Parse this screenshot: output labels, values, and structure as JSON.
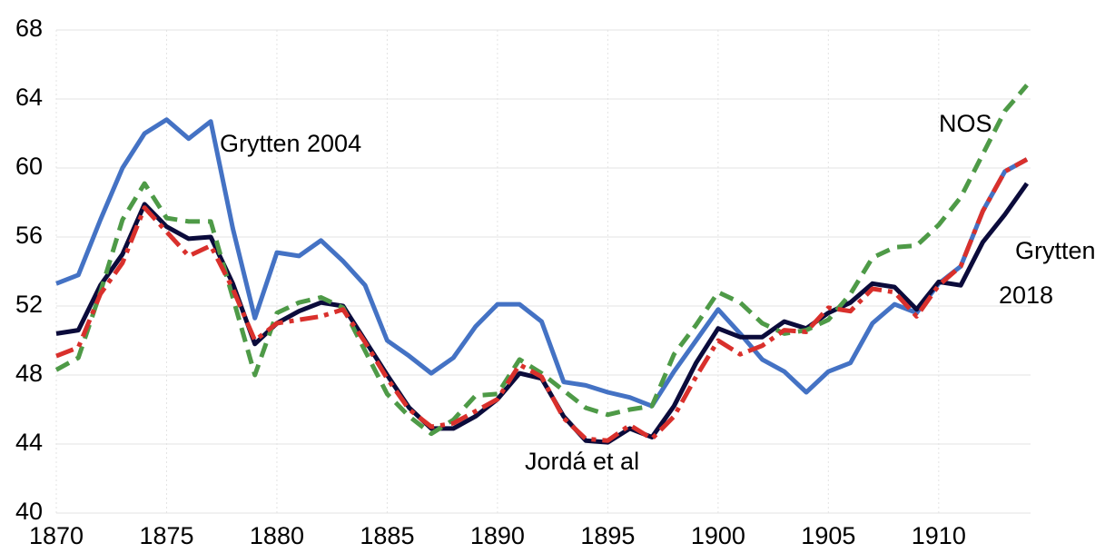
{
  "chart_data": {
    "type": "line",
    "x": [
      1870,
      1871,
      1872,
      1873,
      1874,
      1875,
      1876,
      1877,
      1878,
      1879,
      1880,
      1881,
      1882,
      1883,
      1884,
      1885,
      1886,
      1887,
      1888,
      1889,
      1890,
      1891,
      1892,
      1893,
      1894,
      1895,
      1896,
      1897,
      1898,
      1899,
      1900,
      1901,
      1902,
      1903,
      1904,
      1905,
      1906,
      1907,
      1908,
      1909,
      1910,
      1911,
      1912,
      1913,
      1914
    ],
    "xlim": [
      1870,
      1914
    ],
    "xticks": [
      1870,
      1875,
      1880,
      1885,
      1890,
      1895,
      1900,
      1905,
      1910
    ],
    "ylim": [
      40,
      68
    ],
    "yticks": [
      40,
      44,
      48,
      52,
      56,
      60,
      64,
      68
    ],
    "grid": true,
    "series": [
      {
        "label_lines": [
          "Grytten 2004"
        ],
        "color": "#4472c4",
        "style": "solid",
        "values": [
          53.3,
          53.8,
          57,
          60,
          62,
          62.8,
          61.7,
          62.7,
          56.5,
          51.3,
          55.1,
          54.9,
          55.8,
          54.6,
          53.2,
          50,
          49.1,
          48.1,
          49,
          50.8,
          52.1,
          52.1,
          51.1,
          47.6,
          47.4,
          47,
          46.7,
          46.2,
          48.2,
          50,
          51.8,
          50.4,
          48.9,
          48.2,
          47,
          48.2,
          48.7,
          51,
          52.1,
          51.6,
          53.3,
          54.3,
          57.5,
          59.8,
          60.5
        ]
      },
      {
        "label_lines": [
          "Grytten",
          "2018"
        ],
        "color": "#0b0b3b",
        "style": "solid",
        "values": [
          50.4,
          50.6,
          53.2,
          55,
          57.9,
          56.6,
          55.9,
          56,
          53.3,
          49.8,
          51,
          51.7,
          52.2,
          52,
          50,
          48,
          46.1,
          44.9,
          44.9,
          45.6,
          46.6,
          48.1,
          47.8,
          45.6,
          44.2,
          44.1,
          44.9,
          44.4,
          46.2,
          48.7,
          50.7,
          50.2,
          50.2,
          51.1,
          50.7,
          51.6,
          52.2,
          53.3,
          53.1,
          51.8,
          53.4,
          53.2,
          55.7,
          57.3,
          59.1
        ]
      },
      {
        "label_lines": [
          "NOS"
        ],
        "color": "#4e9a47",
        "style": "dashed",
        "values": [
          48.3,
          49,
          52.8,
          57,
          59.1,
          57.1,
          56.9,
          56.9,
          52.5,
          48,
          51.6,
          52.2,
          52.5,
          51.9,
          49.4,
          46.9,
          45.6,
          44.6,
          45.4,
          46.8,
          46.9,
          48.9,
          48.1,
          47.1,
          46.1,
          45.7,
          46,
          46.2,
          49.2,
          50.9,
          52.8,
          52.2,
          51,
          50.4,
          50.6,
          51.2,
          52.7,
          54.8,
          55.4,
          55.5,
          56.7,
          58.3,
          60.8,
          63.3,
          64.8
        ]
      },
      {
        "label_lines": [
          "Jordá et al"
        ],
        "color": "#d9302c",
        "style": "dashdot",
        "values": [
          49.1,
          49.6,
          52.7,
          54.5,
          57.7,
          56.3,
          54.9,
          55.5,
          53,
          50,
          51,
          51.2,
          51.4,
          51.8,
          49.9,
          47.8,
          46,
          45,
          45.2,
          45.9,
          46.6,
          48.6,
          47.9,
          45.5,
          44.3,
          44.2,
          45.1,
          44.3,
          45.6,
          47.9,
          50,
          49.2,
          49.7,
          50.6,
          50.5,
          51.9,
          51.7,
          53,
          52.8,
          51.4,
          53.2,
          54.3,
          57.5,
          59.8,
          60.5
        ]
      }
    ]
  }
}
